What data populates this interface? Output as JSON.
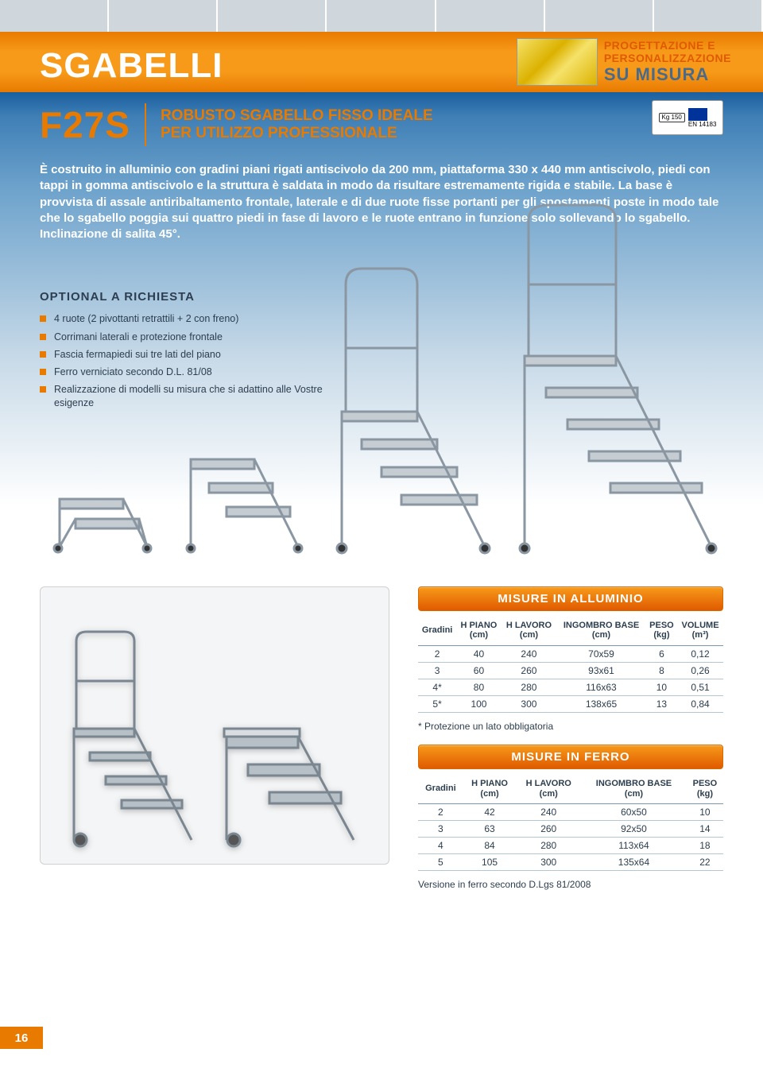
{
  "banner": {
    "title": "SGABELLI"
  },
  "design_box": {
    "line1": "PROGETTAZIONE E",
    "line2": "PERSONALIZZAZIONE",
    "line3": "SU MISURA"
  },
  "model": {
    "code": "F27S",
    "subtitle_line1": "ROBUSTO SGABELLO FISSO IDEALE",
    "subtitle_line2": "PER UTILIZZO PROFESSIONALE"
  },
  "cert": {
    "kg": "Kg\n150",
    "en": "EN 14183"
  },
  "description": "È costruito in alluminio con gradini piani rigati antiscivolo da 200 mm, piattaforma 330 x 440 mm antiscivolo, piedi con tappi in gomma antiscivolo e la struttura è saldata in modo da risultare estremamente rigida e stabile. La base è provvista di assale antiribaltamento frontale, laterale e di due ruote fisse portanti per gli spostamenti poste in modo tale che lo sgabello poggia sui quattro piedi in fase di lavoro e le ruote entrano in funzione solo sollevando lo sgabello. Inclinazione di salita 45°.",
  "optional": {
    "title": "OPTIONAL A RICHIESTA",
    "items": [
      "4 ruote (2 pivottanti retrattili + 2 con freno)",
      "Corrimani laterali e protezione frontale",
      "Fascia fermapiedi sui tre lati del piano",
      "Ferro verniciato secondo D.L. 81/08",
      "Realizzazione di modelli su misura che si adattino alle Vostre esigenze"
    ]
  },
  "table_aluminium": {
    "title": "MISURE IN ALLUMINIO",
    "columns": [
      "Gradini",
      "H PIANO (cm)",
      "H LAVORO (cm)",
      "INGOMBRO BASE (cm)",
      "PESO (kg)",
      "VOLUME (m³)"
    ],
    "rows": [
      [
        "2",
        "40",
        "240",
        "70x59",
        "6",
        "0,12"
      ],
      [
        "3",
        "60",
        "260",
        "93x61",
        "8",
        "0,26"
      ],
      [
        "4*",
        "80",
        "280",
        "116x63",
        "10",
        "0,51"
      ],
      [
        "5*",
        "100",
        "300",
        "138x65",
        "13",
        "0,84"
      ]
    ],
    "note": "* Protezione un lato obbligatoria"
  },
  "table_iron": {
    "title": "MISURE IN FERRO",
    "columns": [
      "Gradini",
      "H PIANO (cm)",
      "H LAVORO (cm)",
      "INGOMBRO BASE (cm)",
      "PESO (kg)"
    ],
    "rows": [
      [
        "2",
        "42",
        "240",
        "60x50",
        "10"
      ],
      [
        "3",
        "63",
        "260",
        "92x50",
        "14"
      ],
      [
        "4",
        "84",
        "280",
        "113x64",
        "18"
      ],
      [
        "5",
        "105",
        "300",
        "135x64",
        "22"
      ]
    ],
    "note": "Versione in ferro secondo D.Lgs 81/2008"
  },
  "page_number": "16",
  "colors": {
    "orange": "#e87a00",
    "orange_light": "#f79a1a",
    "blue_dark": "#1a5f9e",
    "text_dark": "#2c3e4f",
    "tab_gray": "#cfd6dc"
  }
}
